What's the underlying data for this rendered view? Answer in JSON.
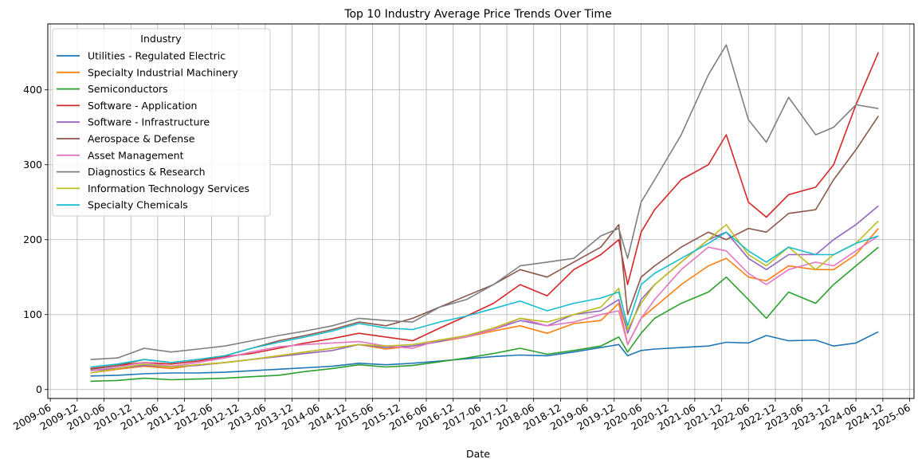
{
  "chart_data": {
    "type": "line",
    "title": "Top 10 Industry Average Price Trends Over Time",
    "xlabel": "Date",
    "ylabel": "",
    "x_ticks": [
      "2009-06",
      "2009-12",
      "2010-06",
      "2010-12",
      "2011-06",
      "2011-12",
      "2012-06",
      "2012-12",
      "2013-06",
      "2013-12",
      "2014-06",
      "2014-12",
      "2015-06",
      "2015-12",
      "2016-06",
      "2016-12",
      "2017-06",
      "2017-12",
      "2018-06",
      "2018-12",
      "2019-06",
      "2019-12",
      "2020-06",
      "2020-12",
      "2021-06",
      "2021-12",
      "2022-06",
      "2022-12",
      "2023-06",
      "2023-12",
      "2024-06",
      "2024-12",
      "2025-06"
    ],
    "y_ticks": [
      0,
      100,
      200,
      300,
      400
    ],
    "xlim": [
      "2009-05-15",
      "2025-07-01"
    ],
    "ylim": [
      -12,
      488
    ],
    "grid": true,
    "legend": {
      "title": "Industry",
      "placement": "top-left"
    },
    "x": [
      "2010-03",
      "2010-09",
      "2011-03",
      "2011-09",
      "2012-03",
      "2012-09",
      "2013-03",
      "2013-09",
      "2014-03",
      "2014-09",
      "2015-03",
      "2015-09",
      "2016-03",
      "2016-09",
      "2017-03",
      "2017-09",
      "2018-03",
      "2018-09",
      "2019-03",
      "2019-09",
      "2020-01",
      "2020-03",
      "2020-06",
      "2020-09",
      "2021-03",
      "2021-09",
      "2022-01",
      "2022-06",
      "2022-10",
      "2023-03",
      "2023-09",
      "2024-01",
      "2024-06",
      "2024-11"
    ],
    "series": [
      {
        "name": "Utilities - Regulated Electric",
        "color": "#1f77b4",
        "values": [
          18,
          19,
          21,
          22,
          22,
          23,
          25,
          27,
          29,
          31,
          35,
          33,
          35,
          38,
          41,
          44,
          46,
          45,
          50,
          56,
          60,
          45,
          52,
          54,
          56,
          58,
          63,
          62,
          72,
          65,
          66,
          58,
          62,
          77
        ]
      },
      {
        "name": "Specialty Industrial Machinery",
        "color": "#ff7f0e",
        "values": [
          22,
          27,
          31,
          28,
          33,
          36,
          40,
          45,
          50,
          55,
          60,
          54,
          58,
          64,
          70,
          78,
          85,
          75,
          88,
          92,
          115,
          60,
          95,
          110,
          140,
          165,
          175,
          150,
          145,
          165,
          160,
          160,
          180,
          215
        ]
      },
      {
        "name": "Semiconductors",
        "color": "#2ca02c",
        "values": [
          11,
          12,
          15,
          13,
          14,
          15,
          17,
          19,
          24,
          28,
          33,
          30,
          32,
          37,
          42,
          48,
          55,
          47,
          52,
          58,
          70,
          50,
          75,
          95,
          115,
          130,
          150,
          120,
          95,
          130,
          115,
          140,
          165,
          190
        ]
      },
      {
        "name": "Software - Application",
        "color": "#d62728",
        "values": [
          28,
          32,
          36,
          34,
          38,
          44,
          48,
          55,
          62,
          68,
          75,
          70,
          65,
          82,
          98,
          115,
          140,
          125,
          160,
          180,
          200,
          140,
          210,
          240,
          280,
          300,
          340,
          250,
          230,
          260,
          270,
          300,
          380,
          450
        ]
      },
      {
        "name": "Software - Infrastructure",
        "color": "#9467bd",
        "values": [
          25,
          28,
          32,
          30,
          32,
          36,
          40,
          44,
          48,
          52,
          60,
          56,
          58,
          64,
          72,
          80,
          92,
          85,
          100,
          105,
          120,
          75,
          120,
          140,
          170,
          200,
          210,
          175,
          160,
          180,
          180,
          200,
          220,
          245
        ]
      },
      {
        "name": "Aerospace & Defense",
        "color": "#8c564b",
        "values": [
          27,
          32,
          40,
          36,
          40,
          45,
          55,
          65,
          72,
          80,
          90,
          85,
          95,
          110,
          125,
          140,
          160,
          150,
          170,
          190,
          220,
          100,
          150,
          165,
          190,
          210,
          200,
          215,
          210,
          235,
          240,
          280,
          320,
          365
        ]
      },
      {
        "name": "Asset Management",
        "color": "#e377c2",
        "values": [
          25,
          30,
          36,
          31,
          36,
          42,
          50,
          57,
          60,
          62,
          64,
          58,
          55,
          66,
          70,
          80,
          95,
          85,
          90,
          100,
          105,
          60,
          95,
          120,
          160,
          190,
          185,
          155,
          140,
          160,
          170,
          165,
          185,
          205
        ]
      },
      {
        "name": "Diagnostics & Research",
        "color": "#7f7f7f",
        "values": [
          40,
          42,
          55,
          50,
          54,
          58,
          65,
          72,
          78,
          85,
          95,
          92,
          90,
          110,
          120,
          140,
          165,
          170,
          175,
          205,
          215,
          175,
          250,
          280,
          340,
          420,
          460,
          360,
          330,
          390,
          340,
          350,
          380,
          375
        ]
      },
      {
        "name": "Information Technology Services",
        "color": "#bcbd22",
        "values": [
          22,
          28,
          34,
          30,
          33,
          36,
          40,
          45,
          50,
          55,
          60,
          58,
          60,
          66,
          72,
          82,
          95,
          90,
          100,
          110,
          135,
          80,
          115,
          140,
          170,
          200,
          220,
          180,
          165,
          190,
          160,
          180,
          195,
          225
        ]
      },
      {
        "name": "Specialty Chemicals",
        "color": "#17becf",
        "values": [
          30,
          34,
          40,
          36,
          40,
          45,
          55,
          63,
          70,
          78,
          88,
          82,
          80,
          90,
          98,
          108,
          118,
          105,
          115,
          122,
          130,
          85,
          140,
          155,
          175,
          195,
          210,
          185,
          170,
          190,
          180,
          180,
          195,
          205
        ]
      }
    ]
  }
}
